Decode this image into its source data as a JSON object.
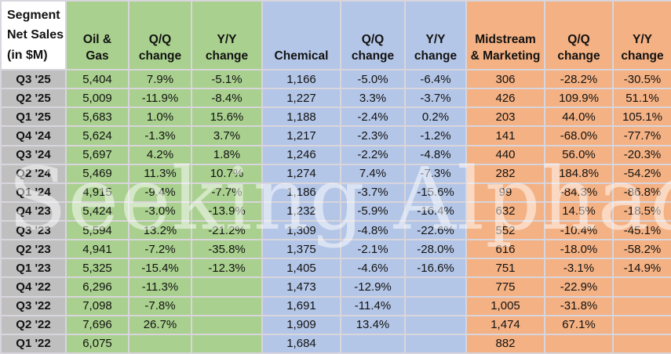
{
  "watermark": {
    "text": "Seeking Alpha",
    "alpha_glyph": "α"
  },
  "colors": {
    "green": "#A9D08E",
    "blue": "#B4C6E7",
    "orange": "#F4B183",
    "label_column": "#BFBFBF",
    "gridline": "#D8D5DC",
    "corner_header_bg": "#FFFFFF",
    "text": "#121212"
  },
  "chart_data": {
    "type": "table",
    "title": "Segment Net Sales (in $M)",
    "corner_header": "Segment\nNet Sales\n(in $M)",
    "columns": [
      {
        "label": "Oil &\nGas",
        "group": "green"
      },
      {
        "label": "Q/Q\nchange",
        "group": "green"
      },
      {
        "label": "Y/Y\nchange",
        "group": "green"
      },
      {
        "label": "Chemical",
        "group": "blue"
      },
      {
        "label": "Q/Q\nchange",
        "group": "blue"
      },
      {
        "label": "Y/Y\nchange",
        "group": "blue"
      },
      {
        "label": "Midstream\n& Marketing",
        "group": "orange"
      },
      {
        "label": "Q/Q\nchange",
        "group": "orange"
      },
      {
        "label": "Y/Y\nchange",
        "group": "orange"
      }
    ],
    "rows": [
      {
        "period": "Q3 '25",
        "values": [
          "5,404",
          "7.9%",
          "-5.1%",
          "1,166",
          "-5.0%",
          "-6.4%",
          "306",
          "-28.2%",
          "-30.5%"
        ]
      },
      {
        "period": "Q2 '25",
        "values": [
          "5,009",
          "-11.9%",
          "-8.4%",
          "1,227",
          "3.3%",
          "-3.7%",
          "426",
          "109.9%",
          "51.1%"
        ]
      },
      {
        "period": "Q1 '25",
        "values": [
          "5,683",
          "1.0%",
          "15.6%",
          "1,188",
          "-2.4%",
          "0.2%",
          "203",
          "44.0%",
          "105.1%"
        ]
      },
      {
        "period": "Q4 '24",
        "values": [
          "5,624",
          "-1.3%",
          "3.7%",
          "1,217",
          "-2.3%",
          "-1.2%",
          "141",
          "-68.0%",
          "-77.7%"
        ]
      },
      {
        "period": "Q3 '24",
        "values": [
          "5,697",
          "4.2%",
          "1.8%",
          "1,246",
          "-2.2%",
          "-4.8%",
          "440",
          "56.0%",
          "-20.3%"
        ]
      },
      {
        "period": "Q2 '24",
        "values": [
          "5,469",
          "11.3%",
          "10.7%",
          "1,274",
          "7.4%",
          "-7.3%",
          "282",
          "184.8%",
          "-54.2%"
        ]
      },
      {
        "period": "Q1 '24",
        "values": [
          "4,915",
          "-9.4%",
          "-7.7%",
          "1,186",
          "-3.7%",
          "-15.6%",
          "99",
          "-84.3%",
          "-86.8%"
        ]
      },
      {
        "period": "Q4 '23",
        "values": [
          "5,424",
          "-3.0%",
          "-13.9%",
          "1,232",
          "-5.9%",
          "-16.4%",
          "632",
          "14.5%",
          "-18.5%"
        ]
      },
      {
        "period": "Q3 '23",
        "values": [
          "5,594",
          "13.2%",
          "-21.2%",
          "1,309",
          "-4.8%",
          "-22.6%",
          "552",
          "-10.4%",
          "-45.1%"
        ]
      },
      {
        "period": "Q2 '23",
        "values": [
          "4,941",
          "-7.2%",
          "-35.8%",
          "1,375",
          "-2.1%",
          "-28.0%",
          "616",
          "-18.0%",
          "-58.2%"
        ]
      },
      {
        "period": "Q1 '23",
        "values": [
          "5,325",
          "-15.4%",
          "-12.3%",
          "1,405",
          "-4.6%",
          "-16.6%",
          "751",
          "-3.1%",
          "-14.9%"
        ]
      },
      {
        "period": "Q4 '22",
        "values": [
          "6,296",
          "-11.3%",
          "",
          "1,473",
          "-12.9%",
          "",
          "775",
          "-22.9%",
          ""
        ]
      },
      {
        "period": "Q3 '22",
        "values": [
          "7,098",
          "-7.8%",
          "",
          "1,691",
          "-11.4%",
          "",
          "1,005",
          "-31.8%",
          ""
        ]
      },
      {
        "period": "Q2 '22",
        "values": [
          "7,696",
          "26.7%",
          "",
          "1,909",
          "13.4%",
          "",
          "1,474",
          "67.1%",
          ""
        ]
      },
      {
        "period": "Q1 '22",
        "values": [
          "6,075",
          "",
          "",
          "1,684",
          "",
          "",
          "882",
          "",
          ""
        ]
      }
    ]
  }
}
